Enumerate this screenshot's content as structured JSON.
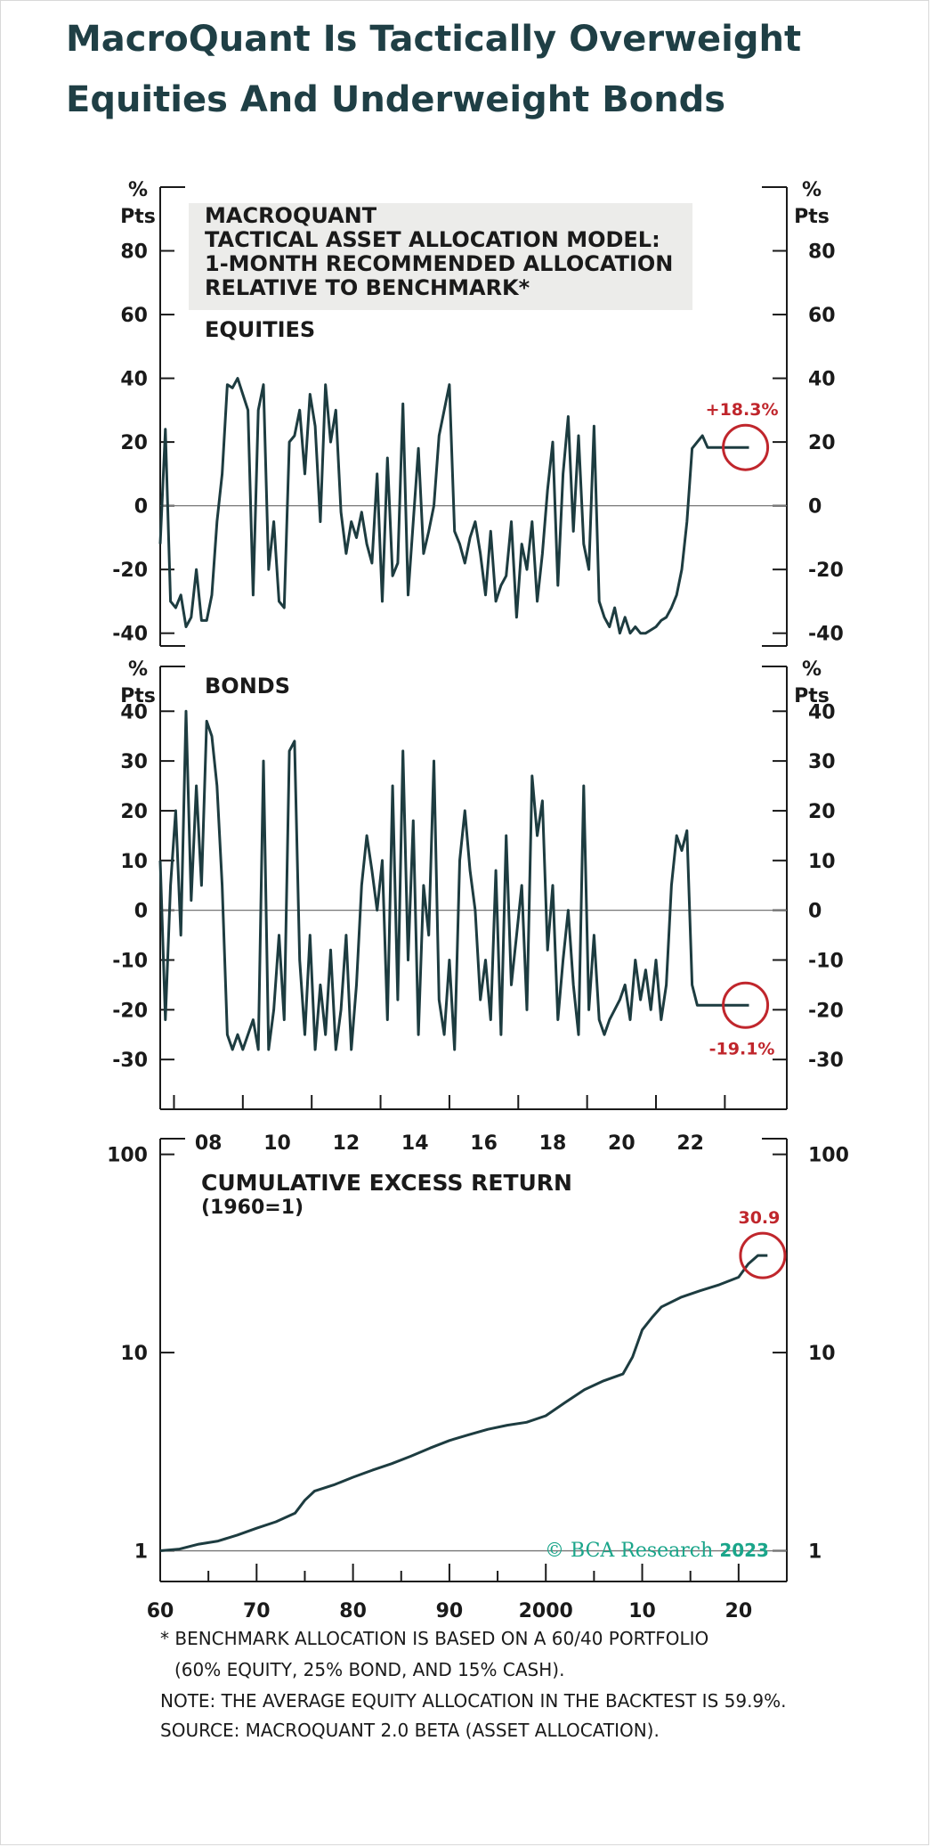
{
  "header": {
    "title_line1": "MacroQuant Is Tactically Overweight",
    "title_line2": "Equities And Underweight Bonds"
  },
  "footnotes": {
    "line1": "* BENCHMARK ALLOCATION IS BASED ON A 60/40 PORTFOLIO",
    "line2": "(60% EQUITY, 25% BOND, AND 15% CASH).",
    "line3": "NOTE: THE AVERAGE EQUITY ALLOCATION IN THE BACKTEST IS 59.9%.",
    "line4": "SOURCE: MACROQUANT 2.0 BETA (ASSET ALLOCATION)."
  },
  "logo": {
    "text": "© BCA Research",
    "year": "2023"
  },
  "colors": {
    "line": "#1d3c40",
    "highlight": "#c0262c",
    "logo": "#1aa58a"
  },
  "chart_data": [
    {
      "type": "line",
      "title": "MACROQUANT TACTICAL ASSET ALLOCATION MODEL: 1-MONTH RECOMMENDED ALLOCATION RELATIVE TO BENCHMARK*",
      "title_lines": [
        "MACROQUANT",
        "TACTICAL ASSET ALLOCATION MODEL:",
        "1-MONTH RECOMMENDED ALLOCATION",
        "RELATIVE TO BENCHMARK*"
      ],
      "panel_label": "EQUITIES",
      "ylabel": "% Pts",
      "ylabel_lines": [
        "%",
        "Pts"
      ],
      "ylim": [
        -44,
        100
      ],
      "yticks": [
        -40,
        -20,
        0,
        20,
        40,
        60,
        80
      ],
      "ytick_labels": [
        "-40",
        "-20",
        "0",
        "20",
        "40",
        "60",
        "80"
      ],
      "xlim": [
        2006.6,
        2024.8
      ],
      "zero_line": true,
      "annotation": {
        "label": "+18.3%",
        "x": 2023.6,
        "y": 18.3
      },
      "series": [
        {
          "x": [
            2006.6,
            2006.75,
            2006.9,
            2007.05,
            2007.2,
            2007.35,
            2007.5,
            2007.65,
            2007.8,
            2007.95,
            2008.1,
            2008.25,
            2008.4,
            2008.55,
            2008.7,
            2008.85,
            2009.0,
            2009.15,
            2009.3,
            2009.45,
            2009.6,
            2009.75,
            2009.9,
            2010.05,
            2010.2,
            2010.35,
            2010.5,
            2010.65,
            2010.8,
            2010.95,
            2011.1,
            2011.25,
            2011.4,
            2011.55,
            2011.7,
            2011.85,
            2012.0,
            2012.15,
            2012.3,
            2012.45,
            2012.6,
            2012.75,
            2012.9,
            2013.05,
            2013.2,
            2013.35,
            2013.5,
            2013.65,
            2013.8,
            2013.95,
            2014.1,
            2014.25,
            2014.4,
            2014.55,
            2014.7,
            2014.85,
            2015.0,
            2015.15,
            2015.3,
            2015.45,
            2015.6,
            2015.75,
            2015.9,
            2016.05,
            2016.2,
            2016.35,
            2016.5,
            2016.65,
            2016.8,
            2016.95,
            2017.1,
            2017.25,
            2017.4,
            2017.55,
            2017.7,
            2017.85,
            2018.0,
            2018.15,
            2018.3,
            2018.45,
            2018.6,
            2018.75,
            2018.9,
            2019.05,
            2019.2,
            2019.35,
            2019.5,
            2019.65,
            2019.8,
            2019.95,
            2020.1,
            2020.25,
            2020.4,
            2020.55,
            2020.7,
            2020.85,
            2021.0,
            2021.15,
            2021.3,
            2021.45,
            2021.6,
            2021.75,
            2021.9,
            2022.05,
            2022.2,
            2022.35,
            2022.5,
            2022.65,
            2022.8,
            2022.95,
            2023.1,
            2023.25,
            2023.4,
            2023.55,
            2023.7
          ],
          "y": [
            -12,
            24,
            -30,
            -32,
            -28,
            -38,
            -35,
            -20,
            -36,
            -36,
            -28,
            -5,
            10,
            38,
            37,
            40,
            35,
            30,
            -28,
            30,
            38,
            -20,
            -5,
            -30,
            -32,
            20,
            22,
            30,
            10,
            35,
            25,
            -5,
            38,
            20,
            30,
            -2,
            -15,
            -5,
            -10,
            -2,
            -12,
            -18,
            10,
            -30,
            15,
            -22,
            -18,
            32,
            -28,
            -5,
            18,
            -15,
            -8,
            0,
            22,
            30,
            38,
            -8,
            -12,
            -18,
            -10,
            -5,
            -15,
            -28,
            -8,
            -30,
            -25,
            -22,
            -5,
            -35,
            -12,
            -20,
            -5,
            -30,
            -15,
            5,
            20,
            -25,
            10,
            28,
            -8,
            22,
            -12,
            -20,
            25,
            -30,
            -35,
            -38,
            -32,
            -40,
            -35,
            -40,
            -38,
            -40,
            -40,
            -39,
            -38,
            -36,
            -35,
            -32,
            -28,
            -20,
            -5,
            18,
            20,
            22,
            18.3,
            18.3,
            18.3,
            18.3,
            18.3,
            18.3,
            18.3,
            18.3,
            18.3
          ]
        }
      ]
    },
    {
      "type": "line",
      "panel_label": "BONDS",
      "ylabel": "% Pts",
      "ylabel_lines": [
        "%",
        "Pts"
      ],
      "ylim": [
        -40,
        49
      ],
      "yticks": [
        -30,
        -20,
        -10,
        0,
        10,
        20,
        30,
        40
      ],
      "ytick_labels": [
        "-30",
        "-20",
        "-10",
        "0",
        "10",
        "20",
        "30",
        "40"
      ],
      "xlim": [
        2006.6,
        2024.8
      ],
      "zero_line": true,
      "annotation": {
        "label": "-19.1%",
        "x": 2023.6,
        "y": -19.1
      },
      "series": [
        {
          "x": [
            2006.6,
            2006.75,
            2006.9,
            2007.05,
            2007.2,
            2007.35,
            2007.5,
            2007.65,
            2007.8,
            2007.95,
            2008.1,
            2008.25,
            2008.4,
            2008.55,
            2008.7,
            2008.85,
            2009.0,
            2009.15,
            2009.3,
            2009.45,
            2009.6,
            2009.75,
            2009.9,
            2010.05,
            2010.2,
            2010.35,
            2010.5,
            2010.65,
            2010.8,
            2010.95,
            2011.1,
            2011.25,
            2011.4,
            2011.55,
            2011.7,
            2011.85,
            2012.0,
            2012.15,
            2012.3,
            2012.45,
            2012.6,
            2012.75,
            2012.9,
            2013.05,
            2013.2,
            2013.35,
            2013.5,
            2013.65,
            2013.8,
            2013.95,
            2014.1,
            2014.25,
            2014.4,
            2014.55,
            2014.7,
            2014.85,
            2015.0,
            2015.15,
            2015.3,
            2015.45,
            2015.6,
            2015.75,
            2015.9,
            2016.05,
            2016.2,
            2016.35,
            2016.5,
            2016.65,
            2016.8,
            2016.95,
            2017.1,
            2017.25,
            2017.4,
            2017.55,
            2017.7,
            2017.85,
            2018.0,
            2018.15,
            2018.3,
            2018.45,
            2018.6,
            2018.75,
            2018.9,
            2019.05,
            2019.2,
            2019.35,
            2019.5,
            2019.65,
            2019.8,
            2019.95,
            2020.1,
            2020.25,
            2020.4,
            2020.55,
            2020.7,
            2020.85,
            2021.0,
            2021.15,
            2021.3,
            2021.45,
            2021.6,
            2021.75,
            2021.9,
            2022.05,
            2022.2,
            2022.35,
            2022.5,
            2022.65,
            2022.8,
            2022.95,
            2023.1,
            2023.25,
            2023.4,
            2023.55,
            2023.7
          ],
          "y": [
            10,
            -22,
            5,
            20,
            -5,
            40,
            2,
            25,
            5,
            38,
            35,
            25,
            5,
            -25,
            -28,
            -25,
            -28,
            -25,
            -22,
            -28,
            30,
            -28,
            -20,
            -5,
            -22,
            32,
            34,
            -10,
            -25,
            -5,
            -28,
            -15,
            -25,
            -8,
            -28,
            -20,
            -5,
            -28,
            -15,
            5,
            15,
            8,
            0,
            10,
            -22,
            25,
            -18,
            32,
            -10,
            18,
            -25,
            5,
            -5,
            30,
            -18,
            -25,
            -10,
            -28,
            10,
            20,
            8,
            0,
            -18,
            -10,
            -22,
            8,
            -25,
            15,
            -15,
            -5,
            5,
            -20,
            27,
            15,
            22,
            -8,
            5,
            -22,
            -10,
            0,
            -15,
            -25,
            25,
            -20,
            -5,
            -22,
            -25,
            -22,
            -20,
            -18,
            -15,
            -22,
            -10,
            -18,
            -12,
            -20,
            -10,
            -22,
            -15,
            5,
            15,
            12,
            16,
            -15,
            -19.1,
            -19.1,
            -19.1,
            -19.1,
            -19.1,
            -19.1,
            -19.1,
            -19.1,
            -19.1,
            -19.1,
            -19.1
          ]
        }
      ],
      "xticks": [
        2008,
        2010,
        2012,
        2014,
        2016,
        2018,
        2020,
        2022
      ],
      "xtick_labels": [
        "08",
        "10",
        "12",
        "14",
        "16",
        "18",
        "20",
        "22"
      ]
    },
    {
      "type": "line",
      "title": "CUMULATIVE EXCESS RETURN (1960=1)",
      "title_lines": [
        "CUMULATIVE EXCESS RETURN",
        "(1960=1)"
      ],
      "yscale": "log",
      "ylim": [
        0.7,
        120
      ],
      "yticks": [
        1,
        10,
        100
      ],
      "ytick_labels": [
        "1",
        "10",
        "100"
      ],
      "xlim": [
        1960,
        2025
      ],
      "xticks": [
        1960,
        1970,
        1980,
        1990,
        2000,
        2010,
        2020
      ],
      "xtick_labels": [
        "60",
        "70",
        "80",
        "90",
        "2000",
        "10",
        "20"
      ],
      "annotation": {
        "label": "30.9",
        "x": 2022.5,
        "y": 30.9
      },
      "series": [
        {
          "x": [
            1960,
            1962,
            1964,
            1966,
            1968,
            1970,
            1972,
            1974,
            1975,
            1976,
            1978,
            1980,
            1982,
            1984,
            1986,
            1988,
            1990,
            1992,
            1994,
            1996,
            1998,
            2000,
            2002,
            2004,
            2006,
            2008,
            2009,
            2010,
            2011,
            2012,
            2014,
            2016,
            2018,
            2020,
            2021,
            2022,
            2023
          ],
          "y": [
            1.0,
            1.02,
            1.08,
            1.12,
            1.2,
            1.3,
            1.4,
            1.55,
            1.8,
            2.0,
            2.15,
            2.35,
            2.55,
            2.75,
            3.0,
            3.3,
            3.6,
            3.85,
            4.1,
            4.3,
            4.45,
            4.8,
            5.6,
            6.5,
            7.2,
            7.8,
            9.5,
            13.0,
            15.0,
            17.0,
            19.0,
            20.5,
            22.0,
            24.0,
            28.0,
            30.9,
            30.9
          ]
        }
      ]
    }
  ]
}
